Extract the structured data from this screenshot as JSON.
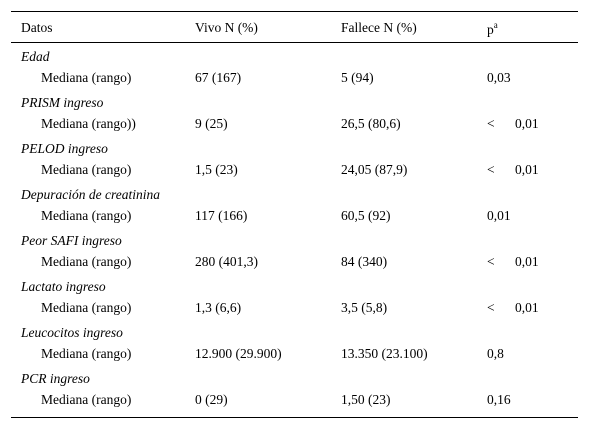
{
  "header": {
    "col1": "Datos",
    "col2": "Vivo N (%)",
    "col3": "Fallece N (%)",
    "col4": "p",
    "col4_sup": "a"
  },
  "sections": [
    {
      "title": "Edad",
      "label": "Mediana (rango)",
      "vivo": "67 (167)",
      "fallece": "5 (94)",
      "p_lt": "",
      "p": "0,03"
    },
    {
      "title": "PRISM ingreso",
      "label": "Mediana (rango))",
      "vivo": "9 (25)",
      "fallece": "26,5 (80,6)",
      "p_lt": "<",
      "p": "0,01"
    },
    {
      "title": "PELOD ingreso",
      "label": "Mediana (rango)",
      "vivo": "1,5 (23)",
      "fallece": "24,05 (87,9)",
      "p_lt": "<",
      "p": "0,01"
    },
    {
      "title": "Depuración de creatinina",
      "label": "Mediana (rango)",
      "vivo": "117 (166)",
      "fallece": "60,5 (92)",
      "p_lt": "",
      "p": "0,01"
    },
    {
      "title": "Peor SAFI ingreso",
      "label": "Mediana (rango)",
      "vivo": "280 (401,3)",
      "fallece": "84 (340)",
      "p_lt": "<",
      "p": "0,01"
    },
    {
      "title": "Lactato ingreso",
      "label": "Mediana (rango)",
      "vivo": "1,3 (6,6)",
      "fallece": "3,5 (5,8)",
      "p_lt": "<",
      "p": "0,01"
    },
    {
      "title": "Leucocitos ingreso",
      "label": "Mediana (rango)",
      "vivo": "12.900 (29.900)",
      "fallece": "13.350 (23.100)",
      "p_lt": "",
      "p": "0,8"
    },
    {
      "title": "PCR ingreso",
      "label": "Mediana (rango)",
      "vivo": "0 (29)",
      "fallece": "1,50 (23)",
      "p_lt": "",
      "p": "0,16"
    }
  ]
}
